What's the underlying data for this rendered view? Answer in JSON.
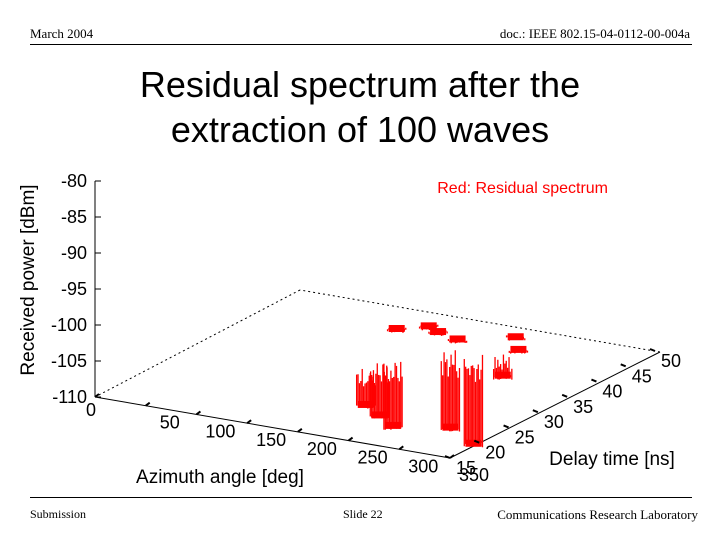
{
  "header": {
    "date": "March 2004",
    "doc_id": "doc.: IEEE 802.15-04-0112-00-004a"
  },
  "title": {
    "line1": "Residual spectrum after the",
    "line2": "extraction of 100 waves"
  },
  "footer": {
    "left": "Submission",
    "center": "Slide 22",
    "right": "Communications Research Laboratory"
  },
  "colors": {
    "series": "#ff0000",
    "axis": "#000000"
  },
  "chart_data": {
    "type": "surface-3d",
    "title": "Residual spectrum after the extraction of 100 waves",
    "legend": "Red: Residual spectrum",
    "xlabel": "Azimuth angle [deg]",
    "ylabel": "Delay time [ns]",
    "zlabel": "Received power [dBm]",
    "xlim": [
      0,
      350
    ],
    "ylim": [
      15,
      50
    ],
    "zlim": [
      -110,
      -80
    ],
    "x_ticks": [
      "0",
      "50",
      "100",
      "150",
      "200",
      "250",
      "300",
      "350"
    ],
    "y_ticks": [
      "15",
      "20",
      "25",
      "30",
      "35",
      "40",
      "45",
      "50"
    ],
    "z_ticks": [
      "-80",
      "-85",
      "-90",
      "-95",
      "-100",
      "-105",
      "-110"
    ],
    "series": [
      {
        "name": "Residual spectrum",
        "peaks": [
          {
            "azimuth": 130,
            "delay": 44,
            "power": -104
          },
          {
            "azimuth": 150,
            "delay": 46,
            "power": -99
          },
          {
            "azimuth": 165,
            "delay": 45,
            "power": -102
          },
          {
            "azimuth": 190,
            "delay": 44,
            "power": -105
          },
          {
            "azimuth": 230,
            "delay": 47,
            "power": -101
          },
          {
            "azimuth": 250,
            "delay": 44,
            "power": -106
          },
          {
            "azimuth": 275,
            "delay": 37,
            "power": -104
          },
          {
            "azimuth": 215,
            "delay": 24,
            "power": -106
          },
          {
            "azimuth": 240,
            "delay": 22,
            "power": -105
          },
          {
            "azimuth": 265,
            "delay": 20,
            "power": -105
          },
          {
            "azimuth": 310,
            "delay": 22,
            "power": -103
          },
          {
            "azimuth": 350,
            "delay": 19,
            "power": -104
          }
        ]
      }
    ]
  }
}
